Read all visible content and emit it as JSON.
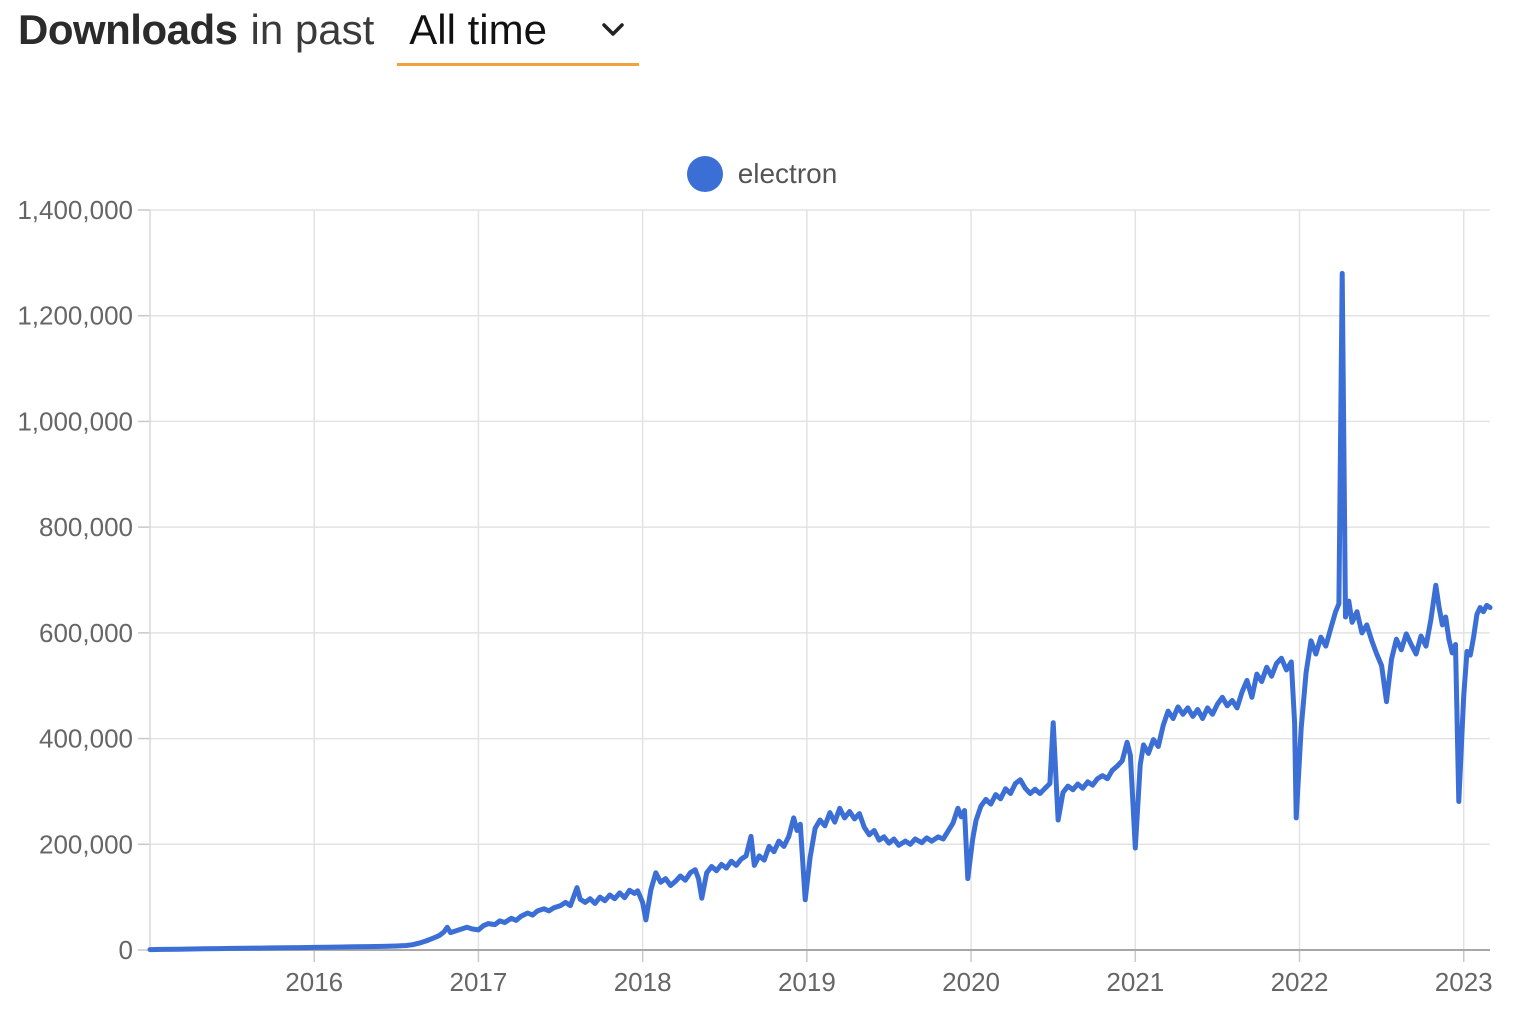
{
  "header": {
    "title_bold": "Downloads",
    "title_rest": "in past",
    "range_select": {
      "value": "All time",
      "chevron_icon": "chevron-down",
      "underline_color": "#f0a33c"
    }
  },
  "legend": {
    "items": [
      {
        "label": "electron",
        "color": "#3b6fd6"
      }
    ]
  },
  "chart_data": {
    "type": "line",
    "title": "Downloads in past All time",
    "xlabel": "",
    "ylabel": "",
    "grid": true,
    "legend_position": "top-center",
    "xlim": [
      2015.0,
      2023.16
    ],
    "ylim": [
      0,
      1400000
    ],
    "x_ticks": [
      2016,
      2017,
      2018,
      2019,
      2020,
      2021,
      2022,
      2023
    ],
    "x_tick_labels": [
      "2016",
      "2017",
      "2018",
      "2019",
      "2020",
      "2021",
      "2022",
      "2023"
    ],
    "y_ticks": [
      0,
      200000,
      400000,
      600000,
      800000,
      1000000,
      1200000,
      1400000
    ],
    "y_tick_labels": [
      "0",
      "200,000",
      "400,000",
      "600,000",
      "800,000",
      "1,000,000",
      "1,200,000",
      "1,400,000"
    ],
    "series": [
      {
        "name": "electron",
        "color": "#3b6fd6",
        "points": [
          [
            2015.0,
            800
          ],
          [
            2015.08,
            1200
          ],
          [
            2015.17,
            1500
          ],
          [
            2015.25,
            1800
          ],
          [
            2015.33,
            2200
          ],
          [
            2015.42,
            2600
          ],
          [
            2015.5,
            3000
          ],
          [
            2015.58,
            3300
          ],
          [
            2015.67,
            3600
          ],
          [
            2015.75,
            4000
          ],
          [
            2015.83,
            4300
          ],
          [
            2015.92,
            4600
          ],
          [
            2016.0,
            5000
          ],
          [
            2016.08,
            5300
          ],
          [
            2016.17,
            5600
          ],
          [
            2016.25,
            6000
          ],
          [
            2016.33,
            6400
          ],
          [
            2016.42,
            6800
          ],
          [
            2016.5,
            7500
          ],
          [
            2016.56,
            8500
          ],
          [
            2016.6,
            10000
          ],
          [
            2016.64,
            13000
          ],
          [
            2016.68,
            17000
          ],
          [
            2016.72,
            22000
          ],
          [
            2016.76,
            27000
          ],
          [
            2016.79,
            34000
          ],
          [
            2016.81,
            43000
          ],
          [
            2016.83,
            33000
          ],
          [
            2016.86,
            36000
          ],
          [
            2016.9,
            40000
          ],
          [
            2016.93,
            43000
          ],
          [
            2016.96,
            40000
          ],
          [
            2017.0,
            38000
          ],
          [
            2017.03,
            46000
          ],
          [
            2017.06,
            50000
          ],
          [
            2017.1,
            48000
          ],
          [
            2017.13,
            55000
          ],
          [
            2017.16,
            52000
          ],
          [
            2017.2,
            60000
          ],
          [
            2017.23,
            56000
          ],
          [
            2017.26,
            64000
          ],
          [
            2017.3,
            70000
          ],
          [
            2017.33,
            66000
          ],
          [
            2017.36,
            74000
          ],
          [
            2017.4,
            78000
          ],
          [
            2017.43,
            74000
          ],
          [
            2017.46,
            80000
          ],
          [
            2017.5,
            84000
          ],
          [
            2017.53,
            90000
          ],
          [
            2017.56,
            84000
          ],
          [
            2017.6,
            118000
          ],
          [
            2017.62,
            96000
          ],
          [
            2017.65,
            90000
          ],
          [
            2017.68,
            97000
          ],
          [
            2017.71,
            88000
          ],
          [
            2017.74,
            100000
          ],
          [
            2017.77,
            93000
          ],
          [
            2017.8,
            104000
          ],
          [
            2017.83,
            97000
          ],
          [
            2017.86,
            108000
          ],
          [
            2017.89,
            99000
          ],
          [
            2017.92,
            113000
          ],
          [
            2017.95,
            107000
          ],
          [
            2017.97,
            112000
          ],
          [
            2018.0,
            90000
          ],
          [
            2018.02,
            57000
          ],
          [
            2018.05,
            114000
          ],
          [
            2018.08,
            146000
          ],
          [
            2018.11,
            128000
          ],
          [
            2018.14,
            135000
          ],
          [
            2018.17,
            122000
          ],
          [
            2018.2,
            130000
          ],
          [
            2018.23,
            140000
          ],
          [
            2018.26,
            132000
          ],
          [
            2018.29,
            146000
          ],
          [
            2018.32,
            152000
          ],
          [
            2018.34,
            135000
          ],
          [
            2018.36,
            98000
          ],
          [
            2018.39,
            146000
          ],
          [
            2018.42,
            158000
          ],
          [
            2018.45,
            150000
          ],
          [
            2018.48,
            162000
          ],
          [
            2018.51,
            155000
          ],
          [
            2018.54,
            168000
          ],
          [
            2018.57,
            160000
          ],
          [
            2018.6,
            172000
          ],
          [
            2018.63,
            178000
          ],
          [
            2018.66,
            215000
          ],
          [
            2018.68,
            160000
          ],
          [
            2018.71,
            178000
          ],
          [
            2018.74,
            170000
          ],
          [
            2018.77,
            196000
          ],
          [
            2018.8,
            186000
          ],
          [
            2018.83,
            206000
          ],
          [
            2018.86,
            196000
          ],
          [
            2018.89,
            215000
          ],
          [
            2018.92,
            250000
          ],
          [
            2018.94,
            226000
          ],
          [
            2018.96,
            238000
          ],
          [
            2018.99,
            95000
          ],
          [
            2019.02,
            175000
          ],
          [
            2019.05,
            230000
          ],
          [
            2019.08,
            246000
          ],
          [
            2019.11,
            235000
          ],
          [
            2019.14,
            260000
          ],
          [
            2019.17,
            242000
          ],
          [
            2019.2,
            268000
          ],
          [
            2019.23,
            250000
          ],
          [
            2019.26,
            262000
          ],
          [
            2019.29,
            248000
          ],
          [
            2019.32,
            258000
          ],
          [
            2019.35,
            232000
          ],
          [
            2019.38,
            218000
          ],
          [
            2019.41,
            226000
          ],
          [
            2019.44,
            208000
          ],
          [
            2019.47,
            214000
          ],
          [
            2019.5,
            202000
          ],
          [
            2019.53,
            210000
          ],
          [
            2019.56,
            198000
          ],
          [
            2019.6,
            206000
          ],
          [
            2019.63,
            200000
          ],
          [
            2019.66,
            210000
          ],
          [
            2019.7,
            203000
          ],
          [
            2019.73,
            212000
          ],
          [
            2019.76,
            206000
          ],
          [
            2019.8,
            214000
          ],
          [
            2019.83,
            210000
          ],
          [
            2019.86,
            225000
          ],
          [
            2019.89,
            240000
          ],
          [
            2019.92,
            268000
          ],
          [
            2019.94,
            252000
          ],
          [
            2019.96,
            264000
          ],
          [
            2019.98,
            135000
          ],
          [
            2020.01,
            210000
          ],
          [
            2020.03,
            245000
          ],
          [
            2020.06,
            272000
          ],
          [
            2020.09,
            285000
          ],
          [
            2020.12,
            276000
          ],
          [
            2020.15,
            294000
          ],
          [
            2020.18,
            286000
          ],
          [
            2020.21,
            305000
          ],
          [
            2020.24,
            296000
          ],
          [
            2020.27,
            315000
          ],
          [
            2020.3,
            322000
          ],
          [
            2020.33,
            306000
          ],
          [
            2020.36,
            296000
          ],
          [
            2020.39,
            304000
          ],
          [
            2020.42,
            296000
          ],
          [
            2020.45,
            306000
          ],
          [
            2020.48,
            315000
          ],
          [
            2020.5,
            430000
          ],
          [
            2020.53,
            246000
          ],
          [
            2020.56,
            298000
          ],
          [
            2020.59,
            310000
          ],
          [
            2020.62,
            303000
          ],
          [
            2020.65,
            314000
          ],
          [
            2020.68,
            306000
          ],
          [
            2020.71,
            318000
          ],
          [
            2020.74,
            312000
          ],
          [
            2020.77,
            324000
          ],
          [
            2020.8,
            330000
          ],
          [
            2020.83,
            324000
          ],
          [
            2020.86,
            340000
          ],
          [
            2020.89,
            348000
          ],
          [
            2020.92,
            358000
          ],
          [
            2020.95,
            393000
          ],
          [
            2020.97,
            368000
          ],
          [
            2021.0,
            193000
          ],
          [
            2021.03,
            350000
          ],
          [
            2021.05,
            388000
          ],
          [
            2021.08,
            372000
          ],
          [
            2021.11,
            398000
          ],
          [
            2021.14,
            385000
          ],
          [
            2021.17,
            425000
          ],
          [
            2021.2,
            452000
          ],
          [
            2021.23,
            438000
          ],
          [
            2021.26,
            460000
          ],
          [
            2021.29,
            446000
          ],
          [
            2021.32,
            458000
          ],
          [
            2021.35,
            442000
          ],
          [
            2021.38,
            455000
          ],
          [
            2021.41,
            438000
          ],
          [
            2021.44,
            458000
          ],
          [
            2021.47,
            446000
          ],
          [
            2021.5,
            465000
          ],
          [
            2021.53,
            478000
          ],
          [
            2021.56,
            462000
          ],
          [
            2021.59,
            472000
          ],
          [
            2021.62,
            458000
          ],
          [
            2021.65,
            488000
          ],
          [
            2021.68,
            510000
          ],
          [
            2021.71,
            478000
          ],
          [
            2021.74,
            522000
          ],
          [
            2021.77,
            508000
          ],
          [
            2021.8,
            535000
          ],
          [
            2021.83,
            518000
          ],
          [
            2021.86,
            542000
          ],
          [
            2021.89,
            552000
          ],
          [
            2021.92,
            530000
          ],
          [
            2021.95,
            545000
          ],
          [
            2021.97,
            430000
          ],
          [
            2021.98,
            250000
          ],
          [
            2022.01,
            420000
          ],
          [
            2022.04,
            525000
          ],
          [
            2022.07,
            585000
          ],
          [
            2022.1,
            560000
          ],
          [
            2022.13,
            592000
          ],
          [
            2022.16,
            575000
          ],
          [
            2022.19,
            608000
          ],
          [
            2022.22,
            640000
          ],
          [
            2022.24,
            655000
          ],
          [
            2022.26,
            1280000
          ],
          [
            2022.28,
            630000
          ],
          [
            2022.3,
            660000
          ],
          [
            2022.32,
            620000
          ],
          [
            2022.35,
            640000
          ],
          [
            2022.38,
            600000
          ],
          [
            2022.41,
            615000
          ],
          [
            2022.44,
            585000
          ],
          [
            2022.47,
            560000
          ],
          [
            2022.5,
            538000
          ],
          [
            2022.53,
            470000
          ],
          [
            2022.56,
            550000
          ],
          [
            2022.59,
            588000
          ],
          [
            2022.62,
            568000
          ],
          [
            2022.65,
            598000
          ],
          [
            2022.68,
            578000
          ],
          [
            2022.71,
            560000
          ],
          [
            2022.74,
            594000
          ],
          [
            2022.77,
            575000
          ],
          [
            2022.8,
            625000
          ],
          [
            2022.83,
            690000
          ],
          [
            2022.85,
            648000
          ],
          [
            2022.87,
            615000
          ],
          [
            2022.89,
            630000
          ],
          [
            2022.91,
            588000
          ],
          [
            2022.93,
            562000
          ],
          [
            2022.95,
            578000
          ],
          [
            2022.97,
            281000
          ],
          [
            2023.0,
            480000
          ],
          [
            2023.02,
            565000
          ],
          [
            2023.04,
            558000
          ],
          [
            2023.06,
            592000
          ],
          [
            2023.08,
            635000
          ],
          [
            2023.1,
            648000
          ],
          [
            2023.12,
            640000
          ],
          [
            2023.14,
            652000
          ],
          [
            2023.16,
            648000
          ]
        ]
      }
    ],
    "colors": {
      "line": "#3b6fd6",
      "grid": "#e3e3e3",
      "x_axis": "#a8a8a8",
      "y_axis": "#d8d8d8",
      "tick": "#c9c9c9",
      "tick_label": "#666666"
    }
  }
}
